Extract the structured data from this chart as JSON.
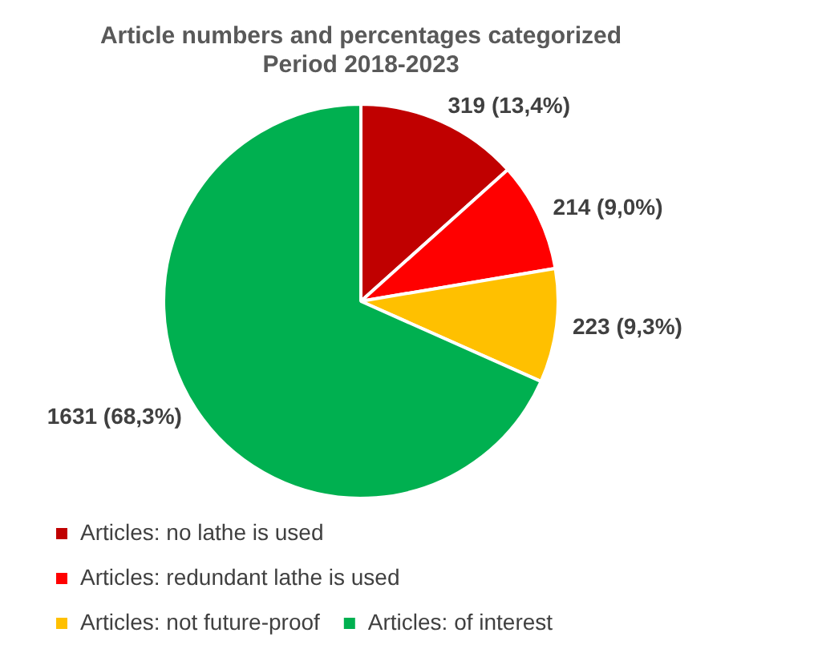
{
  "chart_data": {
    "type": "pie",
    "title": "Article numbers and percentages categorized\nPeriod 2018-2023",
    "categories": [
      "Articles: no lathe is used",
      "Articles: redundant lathe is used",
      "Articles: not future-proof",
      "Articles: of interest"
    ],
    "values": [
      319,
      214,
      223,
      1631
    ],
    "colors": [
      "#c00000",
      "#ff0000",
      "#ffc000",
      "#00b050"
    ],
    "value_labels": [
      "319 (13,4%)",
      "214 (9,0%)",
      "223 (9,3%)",
      "1631 (68,3%)"
    ],
    "legend": "bottom"
  }
}
